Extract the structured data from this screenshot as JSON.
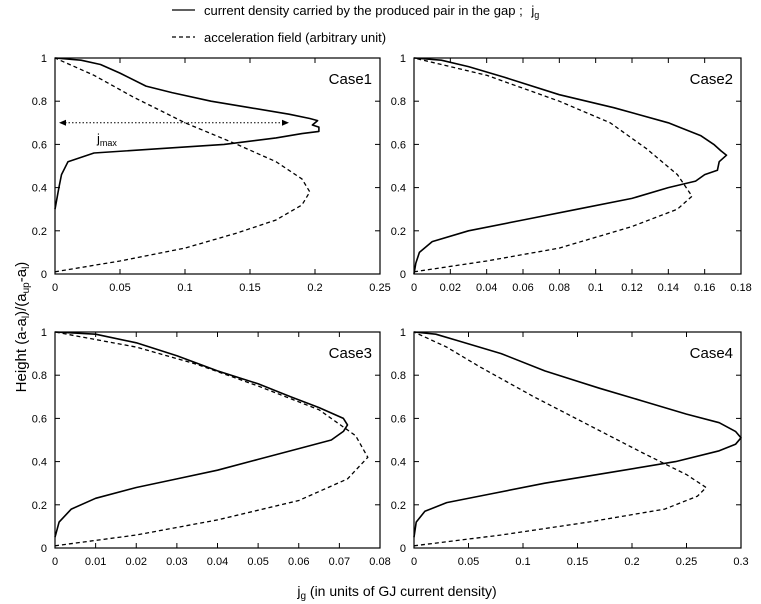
{
  "legend": {
    "solid_label": "current density carried by the produced pair in the gap ;",
    "solid_symbol_main": "j",
    "solid_symbol_sub": "g",
    "dashed_label": "acceleration field (arbitrary unit)"
  },
  "ylabel": {
    "main": "Height (a-a",
    "sub1": "l",
    "mid1": ")/(a",
    "sub2": "up",
    "mid2": "-a",
    "sub3": "l",
    "end": ")"
  },
  "xlabel": {
    "main": "j",
    "sub": "g",
    "rest": " (in units of GJ current density)"
  },
  "annotation": {
    "main": "j",
    "sub": "max"
  },
  "chart_data": [
    {
      "type": "line",
      "title": "Case1",
      "xlim": [
        0,
        0.25
      ],
      "ylim": [
        0,
        1
      ],
      "xticks": [
        "0",
        "0.05",
        "0.1",
        "0.15",
        "0.2",
        "0.25"
      ],
      "yticks": [
        "0",
        "0.2",
        "0.4",
        "0.6",
        "0.8",
        "1"
      ],
      "annotation_jmax": {
        "x_from": 0,
        "x_to": 0.18,
        "y": 0.7
      },
      "series": [
        {
          "style": "solid",
          "points": [
            [
              0,
              0.3
            ],
            [
              0.003,
              0.4
            ],
            [
              0.005,
              0.46
            ],
            [
              0.01,
              0.52
            ],
            [
              0.03,
              0.56
            ],
            [
              0.08,
              0.58
            ],
            [
              0.13,
              0.6
            ],
            [
              0.17,
              0.63
            ],
            [
              0.19,
              0.65
            ],
            [
              0.203,
              0.66
            ],
            [
              0.203,
              0.68
            ],
            [
              0.198,
              0.69
            ],
            [
              0.202,
              0.71
            ],
            [
              0.196,
              0.72
            ],
            [
              0.18,
              0.74
            ],
            [
              0.15,
              0.77
            ],
            [
              0.12,
              0.8
            ],
            [
              0.09,
              0.84
            ],
            [
              0.07,
              0.87
            ],
            [
              0.05,
              0.93
            ],
            [
              0.035,
              0.97
            ],
            [
              0.02,
              0.99
            ],
            [
              0,
              1.0
            ]
          ]
        },
        {
          "style": "dashed",
          "points": [
            [
              0,
              0.01
            ],
            [
              0.05,
              0.06
            ],
            [
              0.1,
              0.12
            ],
            [
              0.14,
              0.19
            ],
            [
              0.17,
              0.25
            ],
            [
              0.19,
              0.32
            ],
            [
              0.196,
              0.38
            ],
            [
              0.19,
              0.44
            ],
            [
              0.17,
              0.52
            ],
            [
              0.14,
              0.6
            ],
            [
              0.1,
              0.7
            ],
            [
              0.06,
              0.82
            ],
            [
              0.03,
              0.92
            ],
            [
              0,
              1.0
            ]
          ]
        }
      ]
    },
    {
      "type": "line",
      "title": "Case2",
      "xlim": [
        0,
        0.18
      ],
      "ylim": [
        0,
        1
      ],
      "xticks": [
        "0",
        "0.02",
        "0.04",
        "0.06",
        "0.08",
        "0.1",
        "0.12",
        "0.14",
        "0.16",
        "0.18"
      ],
      "yticks": [
        "0",
        "0.2",
        "0.4",
        "0.6",
        "0.8",
        "1"
      ],
      "series": [
        {
          "style": "solid",
          "points": [
            [
              0,
              0.0
            ],
            [
              0.001,
              0.05
            ],
            [
              0.003,
              0.1
            ],
            [
              0.01,
              0.15
            ],
            [
              0.03,
              0.2
            ],
            [
              0.06,
              0.25
            ],
            [
              0.09,
              0.3
            ],
            [
              0.12,
              0.35
            ],
            [
              0.14,
              0.4
            ],
            [
              0.155,
              0.43
            ],
            [
              0.16,
              0.46
            ],
            [
              0.167,
              0.48
            ],
            [
              0.168,
              0.52
            ],
            [
              0.172,
              0.55
            ],
            [
              0.169,
              0.57
            ],
            [
              0.165,
              0.6
            ],
            [
              0.158,
              0.64
            ],
            [
              0.14,
              0.7
            ],
            [
              0.11,
              0.77
            ],
            [
              0.08,
              0.83
            ],
            [
              0.05,
              0.91
            ],
            [
              0.03,
              0.96
            ],
            [
              0.015,
              0.99
            ],
            [
              0,
              1.0
            ]
          ]
        },
        {
          "style": "dashed",
          "points": [
            [
              0,
              0.01
            ],
            [
              0.04,
              0.06
            ],
            [
              0.08,
              0.12
            ],
            [
              0.12,
              0.22
            ],
            [
              0.145,
              0.3
            ],
            [
              0.153,
              0.36
            ],
            [
              0.145,
              0.46
            ],
            [
              0.128,
              0.58
            ],
            [
              0.108,
              0.7
            ],
            [
              0.08,
              0.8
            ],
            [
              0.04,
              0.92
            ],
            [
              0,
              1.0
            ]
          ]
        }
      ]
    },
    {
      "type": "line",
      "title": "Case3",
      "xlim": [
        0,
        0.08
      ],
      "ylim": [
        0,
        1
      ],
      "xticks": [
        "0",
        "0.01",
        "0.02",
        "0.03",
        "0.04",
        "0.05",
        "0.06",
        "0.07",
        "0.08"
      ],
      "yticks": [
        "0",
        "0.2",
        "0.4",
        "0.6",
        "0.8",
        "1"
      ],
      "series": [
        {
          "style": "solid",
          "points": [
            [
              0,
              0.05
            ],
            [
              0.001,
              0.12
            ],
            [
              0.004,
              0.18
            ],
            [
              0.01,
              0.23
            ],
            [
              0.02,
              0.28
            ],
            [
              0.03,
              0.32
            ],
            [
              0.04,
              0.36
            ],
            [
              0.05,
              0.41
            ],
            [
              0.06,
              0.46
            ],
            [
              0.068,
              0.5
            ],
            [
              0.071,
              0.54
            ],
            [
              0.072,
              0.57
            ],
            [
              0.071,
              0.6
            ],
            [
              0.065,
              0.65
            ],
            [
              0.058,
              0.7
            ],
            [
              0.05,
              0.76
            ],
            [
              0.04,
              0.82
            ],
            [
              0.03,
              0.89
            ],
            [
              0.02,
              0.95
            ],
            [
              0.01,
              0.99
            ],
            [
              0,
              1.0
            ]
          ]
        },
        {
          "style": "dashed",
          "points": [
            [
              0,
              0.01
            ],
            [
              0.02,
              0.06
            ],
            [
              0.04,
              0.13
            ],
            [
              0.06,
              0.22
            ],
            [
              0.072,
              0.32
            ],
            [
              0.077,
              0.42
            ],
            [
              0.074,
              0.52
            ],
            [
              0.065,
              0.64
            ],
            [
              0.05,
              0.75
            ],
            [
              0.035,
              0.85
            ],
            [
              0.02,
              0.93
            ],
            [
              0,
              1.0
            ]
          ]
        }
      ]
    },
    {
      "type": "line",
      "title": "Case4",
      "xlim": [
        0,
        0.3
      ],
      "ylim": [
        0,
        1
      ],
      "xticks": [
        "0",
        "0.05",
        "0.1",
        "0.15",
        "0.2",
        "0.25",
        "0.3"
      ],
      "yticks": [
        "0",
        "0.2",
        "0.4",
        "0.6",
        "0.8",
        "1"
      ],
      "series": [
        {
          "style": "solid",
          "points": [
            [
              0,
              0.05
            ],
            [
              0.002,
              0.12
            ],
            [
              0.01,
              0.17
            ],
            [
              0.03,
              0.21
            ],
            [
              0.07,
              0.25
            ],
            [
              0.12,
              0.3
            ],
            [
              0.18,
              0.35
            ],
            [
              0.24,
              0.4
            ],
            [
              0.28,
              0.45
            ],
            [
              0.295,
              0.48
            ],
            [
              0.3,
              0.51
            ],
            [
              0.295,
              0.54
            ],
            [
              0.28,
              0.58
            ],
            [
              0.25,
              0.62
            ],
            [
              0.21,
              0.68
            ],
            [
              0.17,
              0.74
            ],
            [
              0.12,
              0.82
            ],
            [
              0.08,
              0.9
            ],
            [
              0.04,
              0.96
            ],
            [
              0.02,
              0.99
            ],
            [
              0,
              1.0
            ]
          ]
        },
        {
          "style": "dashed",
          "points": [
            [
              0,
              0.01
            ],
            [
              0.08,
              0.06
            ],
            [
              0.16,
              0.12
            ],
            [
              0.23,
              0.18
            ],
            [
              0.26,
              0.24
            ],
            [
              0.268,
              0.28
            ],
            [
              0.25,
              0.34
            ],
            [
              0.21,
              0.44
            ],
            [
              0.16,
              0.57
            ],
            [
              0.11,
              0.7
            ],
            [
              0.06,
              0.84
            ],
            [
              0.03,
              0.93
            ],
            [
              0,
              1.0
            ]
          ]
        }
      ]
    }
  ]
}
